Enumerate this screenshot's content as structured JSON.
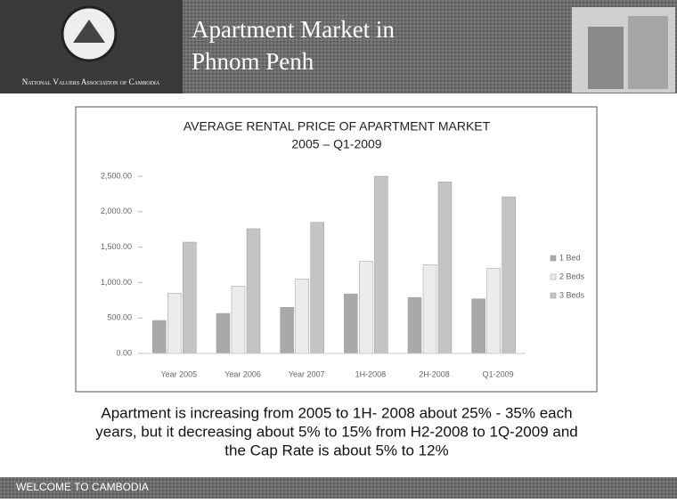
{
  "header": {
    "title": [
      "Apartment Market in",
      "Phnom Penh"
    ],
    "organization": "National Valuers Association of Cambodia"
  },
  "chart_data": {
    "type": "bar",
    "title": "AVERAGE RENTAL PRICE OF APARTMENT MARKET",
    "subtitle": "2005 – Q1-2009",
    "categories": [
      "Year 2005",
      "Year 2006",
      "Year 2007",
      "1H-2008",
      "2H-2008",
      "Q1-2009"
    ],
    "series": [
      {
        "name": "1 Bed",
        "color": "#a9a9a9",
        "values": [
          465,
          565,
          650,
          840,
          790,
          770
        ]
      },
      {
        "name": "2 Beds",
        "color": "#ececec",
        "values": [
          850,
          950,
          1050,
          1300,
          1250,
          1200
        ]
      },
      {
        "name": "3 Beds",
        "color": "#c4c4c4",
        "values": [
          1570,
          1760,
          1850,
          2500,
          2420,
          2210
        ]
      }
    ],
    "ylim": [
      0,
      2500
    ],
    "yticks": [
      {
        "value": 0,
        "label": "0.00"
      },
      {
        "value": 500,
        "label": "500.00"
      },
      {
        "value": 1000,
        "label": "1,000.00"
      },
      {
        "value": 1500,
        "label": "1,500.00"
      },
      {
        "value": 2000,
        "label": "2,000.00"
      },
      {
        "value": 2500,
        "label": "2,500.00"
      }
    ],
    "grid": false,
    "legend": "right"
  },
  "body": {
    "lines": [
      "Apartment is increasing from 2005 to 1H- 2008 about 25% - 35% each",
      "years, but it decreasing about 5% to 15% from H2-2008 to 1Q-2009 and",
      "the Cap Rate is about 5% to 12%"
    ]
  },
  "footer": {
    "text": "WELCOME TO CAMBODIA"
  }
}
